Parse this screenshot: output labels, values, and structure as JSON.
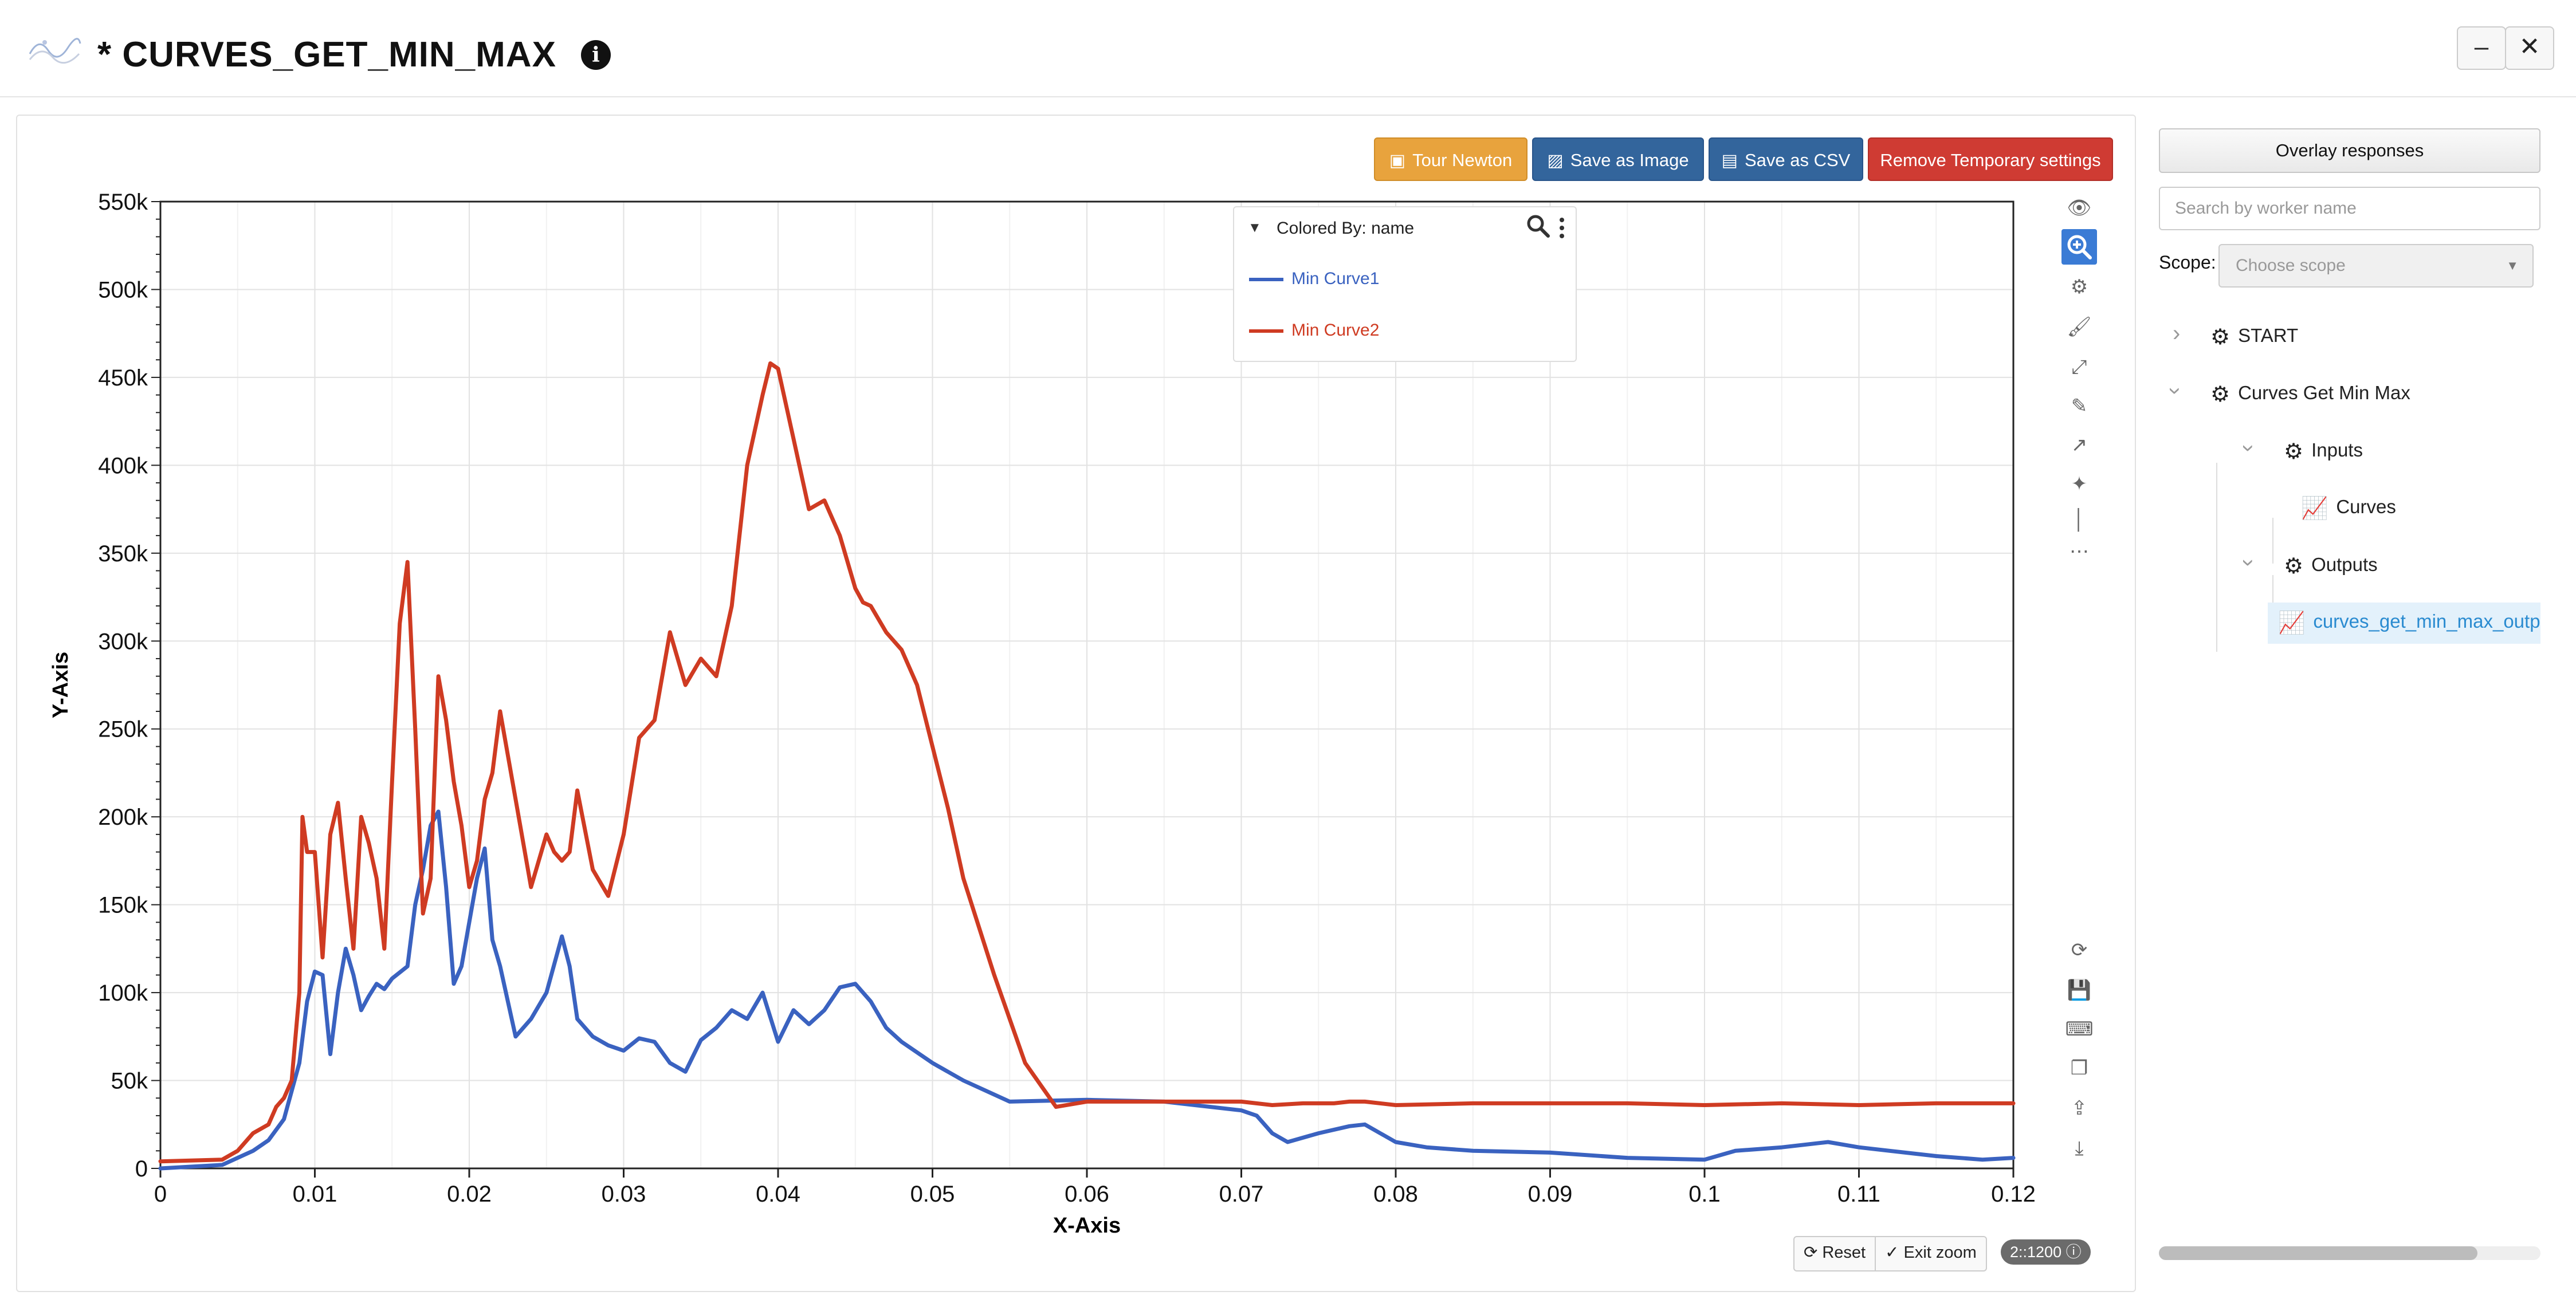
{
  "header": {
    "title": "* CURVES_GET_MIN_MAX",
    "minimize_label": "–",
    "close_label": "✕"
  },
  "toolbar": {
    "tour_label": "Tour Newton",
    "save_image_label": "Save as Image",
    "save_csv_label": "Save as CSV",
    "remove_temp_label": "Remove Temporary settings"
  },
  "colors": {
    "tour": "#e8a33d",
    "save_image": "#33659c",
    "save_csv": "#33659c",
    "remove_temp": "#cf3b33",
    "series1": "#3a62c0",
    "series2": "#cf3b22",
    "active_tool": "#3a7bd5",
    "tree_link": "#2a8bd0"
  },
  "legend": {
    "title": "Colored By: name",
    "items": [
      {
        "label": "Min Curve1",
        "color": "#3a62c0"
      },
      {
        "label": "Min Curve2",
        "color": "#cf3b22"
      }
    ]
  },
  "chart_controls": {
    "reset_label": "Reset",
    "exit_zoom_label": "Exit zoom",
    "zoom_badge": "2::1200"
  },
  "sidebar": {
    "overlay_label": "Overlay responses",
    "search_placeholder": "Search by worker name",
    "scope_label": "Scope:",
    "scope_placeholder": "Choose scope",
    "tree": {
      "start": "START",
      "node": "Curves Get Min Max",
      "inputs": "Inputs",
      "curves": "Curves",
      "outputs": "Outputs",
      "output_item": "curves_get_min_max_output"
    }
  },
  "chart_data": {
    "type": "line",
    "xlabel": "X-Axis",
    "ylabel": "Y-Axis",
    "xlim": [
      0,
      0.12
    ],
    "ylim": [
      0,
      550000
    ],
    "x_ticks": [
      0,
      0.01,
      0.02,
      0.03,
      0.04,
      0.05,
      0.06,
      0.07,
      0.08,
      0.09,
      0.1,
      0.11,
      0.12
    ],
    "x_tick_labels": [
      "0",
      "0.01",
      "0.02",
      "0.03",
      "0.04",
      "0.05",
      "0.06",
      "0.07",
      "0.08",
      "0.09",
      "0.1",
      "0.11",
      "0.12"
    ],
    "y_ticks": [
      0,
      50000,
      100000,
      150000,
      200000,
      250000,
      300000,
      350000,
      400000,
      450000,
      500000,
      550000
    ],
    "y_tick_labels": [
      "0",
      "50k",
      "100k",
      "150k",
      "200k",
      "250k",
      "300k",
      "350k",
      "400k",
      "450k",
      "500k",
      "550k"
    ],
    "grid": true,
    "legend_position": "top-right",
    "series": [
      {
        "name": "Min Curve1",
        "color": "#3a62c0",
        "x": [
          0,
          0.004,
          0.005,
          0.006,
          0.007,
          0.008,
          0.009,
          0.0095,
          0.01,
          0.0105,
          0.011,
          0.0115,
          0.012,
          0.0125,
          0.013,
          0.0135,
          0.014,
          0.0145,
          0.015,
          0.016,
          0.0165,
          0.017,
          0.0175,
          0.018,
          0.0185,
          0.019,
          0.0195,
          0.02,
          0.0205,
          0.021,
          0.0215,
          0.022,
          0.023,
          0.024,
          0.025,
          0.026,
          0.0265,
          0.027,
          0.028,
          0.029,
          0.03,
          0.031,
          0.032,
          0.033,
          0.034,
          0.035,
          0.036,
          0.037,
          0.038,
          0.039,
          0.04,
          0.041,
          0.042,
          0.043,
          0.044,
          0.045,
          0.046,
          0.047,
          0.048,
          0.05,
          0.052,
          0.055,
          0.06,
          0.065,
          0.07,
          0.071,
          0.072,
          0.073,
          0.075,
          0.077,
          0.078,
          0.08,
          0.082,
          0.085,
          0.09,
          0.095,
          0.1,
          0.102,
          0.105,
          0.108,
          0.11,
          0.115,
          0.118,
          0.12
        ],
        "y": [
          0,
          2000,
          6000,
          10000,
          16000,
          28000,
          60000,
          95000,
          112000,
          110000,
          65000,
          100000,
          125000,
          110000,
          90000,
          98000,
          105000,
          102000,
          108000,
          115000,
          150000,
          170000,
          195000,
          203000,
          160000,
          105000,
          115000,
          140000,
          165000,
          182000,
          130000,
          115000,
          75000,
          85000,
          100000,
          132000,
          115000,
          85000,
          75000,
          70000,
          67000,
          74000,
          72000,
          60000,
          55000,
          73000,
          80000,
          90000,
          85000,
          100000,
          72000,
          90000,
          82000,
          90000,
          103000,
          105000,
          95000,
          80000,
          72000,
          60000,
          50000,
          38000,
          39000,
          38000,
          33000,
          30000,
          20000,
          15000,
          20000,
          24000,
          25000,
          15000,
          12000,
          10000,
          9000,
          6000,
          5000,
          10000,
          12000,
          15000,
          12000,
          7000,
          5000,
          6000
        ]
      },
      {
        "name": "Min Curve2",
        "color": "#cf3b22",
        "x": [
          0,
          0.004,
          0.005,
          0.006,
          0.007,
          0.0075,
          0.008,
          0.0085,
          0.009,
          0.0092,
          0.0095,
          0.01,
          0.0105,
          0.011,
          0.0115,
          0.012,
          0.0125,
          0.013,
          0.0135,
          0.014,
          0.0145,
          0.015,
          0.0155,
          0.016,
          0.0165,
          0.017,
          0.0175,
          0.018,
          0.0185,
          0.019,
          0.0195,
          0.02,
          0.0205,
          0.021,
          0.0215,
          0.022,
          0.023,
          0.024,
          0.025,
          0.0255,
          0.026,
          0.0265,
          0.027,
          0.028,
          0.029,
          0.03,
          0.031,
          0.032,
          0.033,
          0.034,
          0.035,
          0.036,
          0.037,
          0.038,
          0.039,
          0.0395,
          0.04,
          0.041,
          0.042,
          0.043,
          0.044,
          0.045,
          0.0455,
          0.046,
          0.047,
          0.048,
          0.049,
          0.05,
          0.051,
          0.052,
          0.054,
          0.056,
          0.058,
          0.06,
          0.062,
          0.065,
          0.067,
          0.07,
          0.072,
          0.074,
          0.076,
          0.077,
          0.078,
          0.08,
          0.085,
          0.09,
          0.095,
          0.1,
          0.105,
          0.11,
          0.115,
          0.12
        ],
        "y": [
          4000,
          5000,
          10000,
          20000,
          25000,
          35000,
          40000,
          50000,
          100000,
          200000,
          180000,
          180000,
          120000,
          190000,
          208000,
          165000,
          125000,
          200000,
          185000,
          165000,
          125000,
          220000,
          310000,
          345000,
          250000,
          145000,
          165000,
          280000,
          255000,
          220000,
          195000,
          160000,
          175000,
          210000,
          225000,
          260000,
          210000,
          160000,
          190000,
          180000,
          175000,
          180000,
          215000,
          170000,
          155000,
          190000,
          245000,
          255000,
          305000,
          275000,
          290000,
          280000,
          320000,
          400000,
          440000,
          458000,
          455000,
          415000,
          375000,
          380000,
          360000,
          330000,
          322000,
          320000,
          305000,
          295000,
          275000,
          240000,
          205000,
          165000,
          110000,
          60000,
          35000,
          38000,
          38000,
          38000,
          38000,
          38000,
          36000,
          37000,
          37000,
          38000,
          38000,
          36000,
          37000,
          37000,
          37000,
          36000,
          37000,
          36000,
          37000,
          37000
        ]
      }
    ]
  }
}
